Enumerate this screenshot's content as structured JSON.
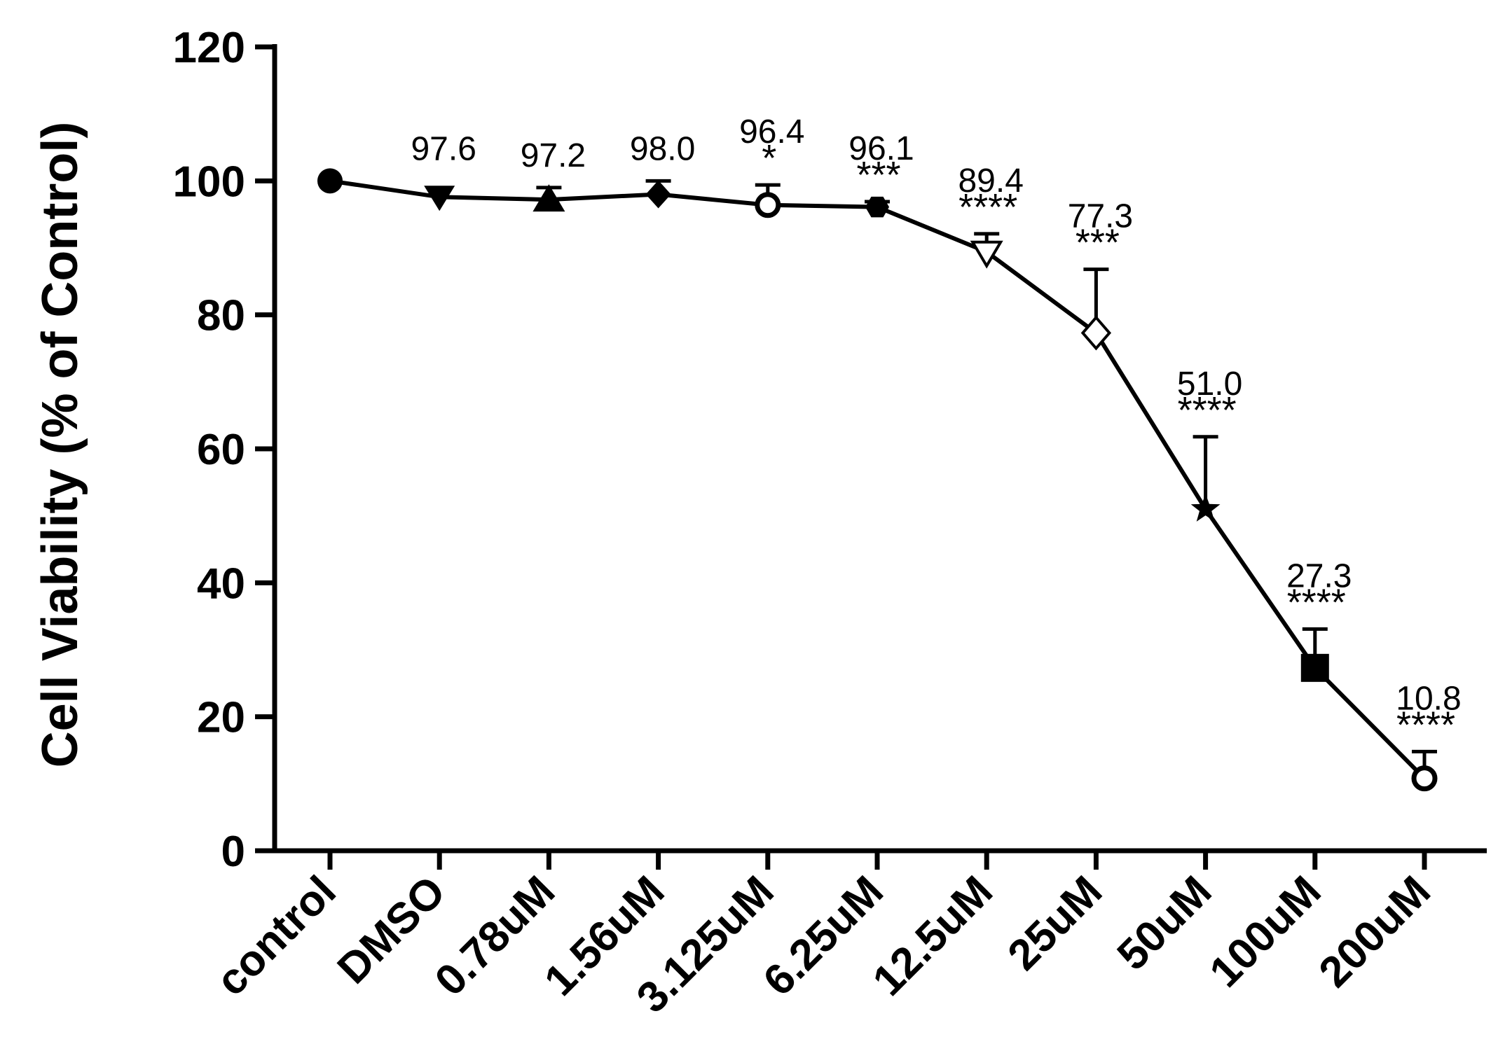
{
  "chart_data": {
    "type": "line",
    "title": "",
    "xlabel": "",
    "ylabel": "Cell Viability (% of Control)",
    "ylim": [
      0,
      120
    ],
    "yticks": [
      "0",
      "20",
      "40",
      "60",
      "80",
      "100",
      "120"
    ],
    "grid": false,
    "legend": "none",
    "categories": [
      "control",
      "DMSO",
      "0.78uM",
      "1.56uM",
      "3.125uM",
      "6.25uM",
      "12.5uM",
      "25uM",
      "50uM",
      "100uM",
      "200uM"
    ],
    "series": [
      {
        "values": [
          100,
          97.6,
          97.2,
          98.0,
          96.4,
          96.1,
          89.4,
          77.3,
          51.0,
          27.3,
          10.8
        ],
        "error_upper": [
          0,
          0,
          1.8,
          2.0,
          3.0,
          0.8,
          2.7,
          9.5,
          10.8,
          5.8,
          4.0
        ],
        "markers": [
          "circle",
          "triangle-down",
          "triangle-up",
          "diamond",
          "circle-open",
          "hexagon",
          "triangle-down-open",
          "diamond-open",
          "star",
          "square",
          "circle-open"
        ],
        "value_labels": [
          "",
          "97.6",
          "97.2",
          "98.0",
          "96.4",
          "96.1",
          "89.4",
          "77.3",
          "51.0",
          "27.3",
          "10.8"
        ],
        "significance": [
          "",
          "",
          "",
          "",
          "*",
          "***",
          "****",
          "***",
          "****",
          "****",
          "****"
        ]
      }
    ],
    "color": "#000000"
  }
}
